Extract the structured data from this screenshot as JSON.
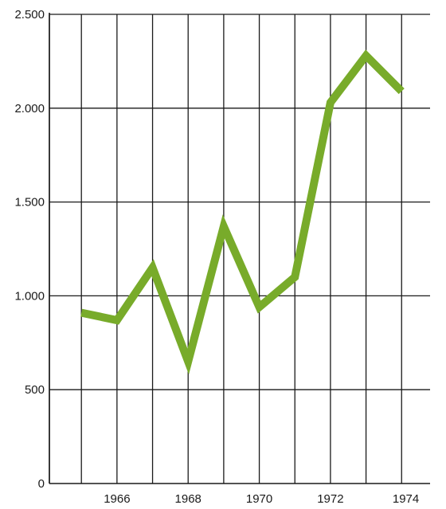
{
  "chart_data": {
    "type": "line",
    "title": "",
    "xlabel": "",
    "ylabel": "",
    "x": [
      1965,
      1966,
      1967,
      1968,
      1969,
      1970,
      1971,
      1972,
      1973,
      1974
    ],
    "series": [
      {
        "values": [
          910,
          870,
          1150,
          650,
          1370,
          940,
          1100,
          2030,
          2280,
          2090
        ],
        "color": "#78ab2a"
      }
    ],
    "xlim": [
      1964.1,
      1974.8
    ],
    "ylim": [
      0,
      2500
    ],
    "x_ticks": [
      1966,
      1968,
      1970,
      1972,
      1974
    ],
    "x_tick_labels": [
      "1966",
      "1968",
      "1970",
      "1972",
      "1974"
    ],
    "y_ticks": [
      0,
      500,
      1000,
      1500,
      2000,
      2500
    ],
    "y_tick_labels": [
      "0",
      "500",
      "1.000",
      "1.500",
      "2.000",
      "2.500"
    ],
    "x_grid": [
      1964.1,
      1965,
      1966,
      1967,
      1968,
      1969,
      1970,
      1971,
      1972,
      1973,
      1974
    ],
    "grid": true,
    "legend": "none"
  }
}
